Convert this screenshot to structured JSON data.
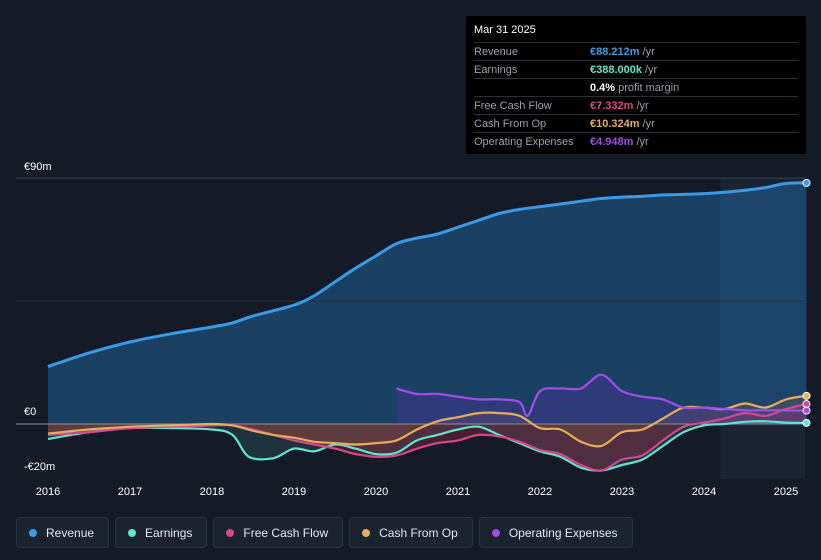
{
  "tooltip": {
    "date": "Mar 31 2025",
    "rows": [
      {
        "label": "Revenue",
        "value": "€88.212m",
        "unit": "/yr",
        "color": "#3b9ae6"
      },
      {
        "label": "Earnings",
        "value": "€388.000k",
        "unit": "/yr",
        "color": "#5ee6d2"
      },
      {
        "label": "",
        "value": "0.4%",
        "unit": "profit margin",
        "color": "#ffffff"
      },
      {
        "label": "Free Cash Flow",
        "value": "€7.332m",
        "unit": "/yr",
        "color": "#d6488a"
      },
      {
        "label": "Cash From Op",
        "value": "€10.324m",
        "unit": "/yr",
        "color": "#e8ad5c"
      },
      {
        "label": "Operating Expenses",
        "value": "€4.948m",
        "unit": "/yr",
        "color": "#a24ee8"
      }
    ]
  },
  "legend": [
    {
      "label": "Revenue",
      "color": "#3b9ae6"
    },
    {
      "label": "Earnings",
      "color": "#5ee6d2"
    },
    {
      "label": "Free Cash Flow",
      "color": "#d6488a"
    },
    {
      "label": "Cash From Op",
      "color": "#e8ad5c"
    },
    {
      "label": "Operating Expenses",
      "color": "#a24ee8"
    }
  ],
  "chart_data": {
    "type": "area",
    "title": "",
    "xlabel": "",
    "ylabel": "",
    "ylim": [
      -20,
      90
    ],
    "y_tick_labels": [
      "€90m",
      "€0",
      "-€20m"
    ],
    "x_tick_labels": [
      "2016",
      "2017",
      "2018",
      "2019",
      "2020",
      "2021",
      "2022",
      "2023",
      "2024",
      "2025"
    ],
    "forecast_region_start": 2024.2,
    "series": [
      {
        "name": "Revenue",
        "color": "#3b9ae6",
        "points": [
          [
            2016,
            21
          ],
          [
            2016.5,
            26
          ],
          [
            2017,
            30
          ],
          [
            2017.5,
            33
          ],
          [
            2018,
            35.5
          ],
          [
            2018.25,
            37
          ],
          [
            2018.5,
            39.5
          ],
          [
            2019,
            43.5
          ],
          [
            2019.25,
            47
          ],
          [
            2019.5,
            52
          ],
          [
            2019.75,
            57
          ],
          [
            2020,
            61.5
          ],
          [
            2020.25,
            66
          ],
          [
            2020.5,
            68
          ],
          [
            2020.75,
            69.5
          ],
          [
            2021,
            72
          ],
          [
            2021.25,
            74.5
          ],
          [
            2021.5,
            77
          ],
          [
            2021.75,
            78.5
          ],
          [
            2022,
            79.5
          ],
          [
            2022.25,
            80.5
          ],
          [
            2022.5,
            81.5
          ],
          [
            2022.75,
            82.5
          ],
          [
            2023,
            83
          ],
          [
            2023.25,
            83.3
          ],
          [
            2023.5,
            83.8
          ],
          [
            2023.75,
            84
          ],
          [
            2024,
            84.3
          ],
          [
            2024.25,
            84.8
          ],
          [
            2024.5,
            85.5
          ],
          [
            2024.75,
            86.5
          ],
          [
            2025,
            88
          ],
          [
            2025.25,
            88.2
          ]
        ]
      },
      {
        "name": "Earnings",
        "color": "#5ee6d2",
        "points": [
          [
            2016,
            -5.5
          ],
          [
            2016.5,
            -3
          ],
          [
            2017,
            -1.5
          ],
          [
            2017.5,
            -1.5
          ],
          [
            2018,
            -2
          ],
          [
            2018.25,
            -4
          ],
          [
            2018.45,
            -12
          ],
          [
            2018.75,
            -12.5
          ],
          [
            2019,
            -9
          ],
          [
            2019.25,
            -10
          ],
          [
            2019.5,
            -7.5
          ],
          [
            2019.75,
            -9
          ],
          [
            2020,
            -11
          ],
          [
            2020.25,
            -10.5
          ],
          [
            2020.5,
            -6
          ],
          [
            2020.75,
            -4
          ],
          [
            2021,
            -2
          ],
          [
            2021.25,
            -1
          ],
          [
            2021.5,
            -4
          ],
          [
            2021.75,
            -7
          ],
          [
            2022,
            -10
          ],
          [
            2022.25,
            -12
          ],
          [
            2022.5,
            -16
          ],
          [
            2022.75,
            -17
          ],
          [
            2023,
            -15
          ],
          [
            2023.25,
            -13
          ],
          [
            2023.5,
            -8
          ],
          [
            2023.75,
            -3
          ],
          [
            2024,
            -0.5
          ],
          [
            2024.25,
            0
          ],
          [
            2024.5,
            0.8
          ],
          [
            2024.75,
            1
          ],
          [
            2025,
            0.5
          ],
          [
            2025.25,
            0.4
          ]
        ]
      },
      {
        "name": "Free Cash Flow",
        "color": "#d6488a",
        "points": [
          [
            2016,
            -4
          ],
          [
            2016.5,
            -3
          ],
          [
            2017,
            -1.5
          ],
          [
            2017.5,
            -1
          ],
          [
            2018,
            -0.5
          ],
          [
            2018.25,
            -0.5
          ],
          [
            2018.5,
            -2
          ],
          [
            2018.75,
            -4
          ],
          [
            2019,
            -6
          ],
          [
            2019.25,
            -7.5
          ],
          [
            2019.5,
            -9
          ],
          [
            2019.75,
            -11
          ],
          [
            2020,
            -12
          ],
          [
            2020.25,
            -11.5
          ],
          [
            2020.5,
            -9
          ],
          [
            2020.75,
            -7
          ],
          [
            2021,
            -6
          ],
          [
            2021.25,
            -4
          ],
          [
            2021.5,
            -4.5
          ],
          [
            2021.75,
            -6.5
          ],
          [
            2022,
            -9.5
          ],
          [
            2022.25,
            -11
          ],
          [
            2022.5,
            -15
          ],
          [
            2022.75,
            -17
          ],
          [
            2023,
            -13
          ],
          [
            2023.25,
            -11.5
          ],
          [
            2023.5,
            -6
          ],
          [
            2023.75,
            -1
          ],
          [
            2024,
            0.5
          ],
          [
            2024.25,
            2
          ],
          [
            2024.5,
            4
          ],
          [
            2024.75,
            3
          ],
          [
            2025,
            5.5
          ],
          [
            2025.25,
            7.3
          ]
        ]
      },
      {
        "name": "Cash From Op",
        "color": "#e8ad5c",
        "points": [
          [
            2016,
            -3.5
          ],
          [
            2016.5,
            -2
          ],
          [
            2017,
            -1
          ],
          [
            2017.5,
            -0.5
          ],
          [
            2018,
            0
          ],
          [
            2018.25,
            -0.5
          ],
          [
            2018.5,
            -2.5
          ],
          [
            2018.75,
            -4
          ],
          [
            2019,
            -5
          ],
          [
            2019.25,
            -6.5
          ],
          [
            2019.5,
            -7
          ],
          [
            2019.75,
            -7.5
          ],
          [
            2020,
            -7
          ],
          [
            2020.25,
            -6
          ],
          [
            2020.5,
            -2
          ],
          [
            2020.75,
            1
          ],
          [
            2021,
            2.5
          ],
          [
            2021.25,
            4
          ],
          [
            2021.5,
            4
          ],
          [
            2021.75,
            3
          ],
          [
            2022,
            -1.5
          ],
          [
            2022.25,
            -2
          ],
          [
            2022.5,
            -6.5
          ],
          [
            2022.75,
            -8
          ],
          [
            2023,
            -3
          ],
          [
            2023.25,
            -2
          ],
          [
            2023.5,
            2
          ],
          [
            2023.75,
            6
          ],
          [
            2024,
            6
          ],
          [
            2024.25,
            5.5
          ],
          [
            2024.5,
            7.5
          ],
          [
            2024.75,
            6
          ],
          [
            2025,
            9
          ],
          [
            2025.25,
            10.3
          ]
        ]
      },
      {
        "name": "Operating Expenses",
        "color": "#a24ee8",
        "points": [
          [
            2020.25,
            13
          ],
          [
            2020.5,
            11
          ],
          [
            2020.75,
            11
          ],
          [
            2021,
            10
          ],
          [
            2021.25,
            9
          ],
          [
            2021.5,
            9
          ],
          [
            2021.75,
            8
          ],
          [
            2021.85,
            3
          ],
          [
            2022,
            12
          ],
          [
            2022.25,
            13
          ],
          [
            2022.5,
            13
          ],
          [
            2022.75,
            18
          ],
          [
            2023,
            12
          ],
          [
            2023.25,
            10
          ],
          [
            2023.5,
            9
          ],
          [
            2023.75,
            6
          ],
          [
            2024,
            6
          ],
          [
            2024.25,
            5.5
          ],
          [
            2024.5,
            5
          ],
          [
            2024.75,
            5
          ],
          [
            2025,
            5
          ],
          [
            2025.25,
            4.9
          ]
        ]
      }
    ]
  }
}
